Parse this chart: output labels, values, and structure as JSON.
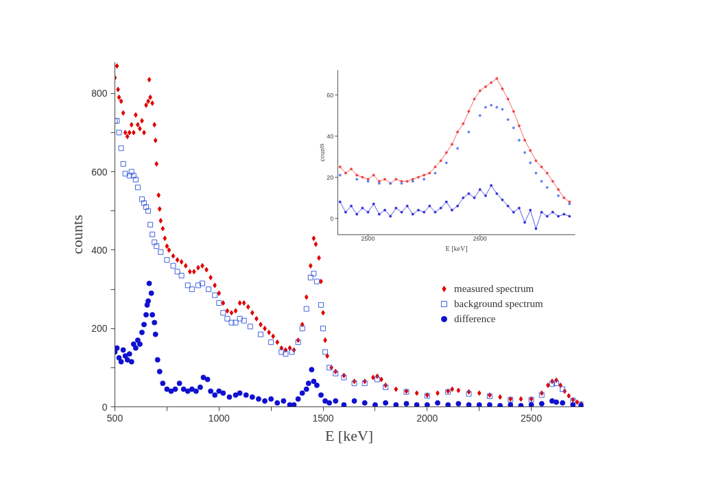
{
  "chart_data": [
    {
      "type": "scatter",
      "xlabel": "E [keV]",
      "ylabel": "counts",
      "xlim": [
        500,
        2750
      ],
      "xticks": [
        500,
        1000,
        1500,
        2000,
        2500,
        {
          "value": 750,
          "label": null
        },
        {
          "value": 1250,
          "label": null
        },
        {
          "value": 1750,
          "label": null
        },
        {
          "value": 2250,
          "label": null
        }
      ],
      "ylim": [
        0,
        880
      ],
      "yticks": [
        0,
        200,
        400,
        600,
        800,
        {
          "value": 100,
          "label": null
        },
        {
          "value": 300,
          "label": null
        },
        {
          "value": 500,
          "label": null
        },
        {
          "value": 700,
          "label": null
        }
      ],
      "grid": false,
      "legend": "right",
      "series": [
        {
          "name": "measured spectrum",
          "color": "#e00000",
          "marker": "diamond",
          "x": [
            500,
            510,
            515,
            520,
            530,
            540,
            550,
            560,
            570,
            580,
            590,
            600,
            610,
            620,
            630,
            640,
            650,
            660,
            665,
            670,
            680,
            690,
            695,
            700,
            710,
            715,
            720,
            730,
            740,
            750,
            760,
            780,
            800,
            820,
            840,
            860,
            880,
            900,
            920,
            940,
            960,
            980,
            1000,
            1020,
            1040,
            1060,
            1080,
            1100,
            1120,
            1140,
            1160,
            1180,
            1200,
            1220,
            1240,
            1260,
            1280,
            1300,
            1320,
            1340,
            1360,
            1380,
            1400,
            1420,
            1440,
            1455,
            1465,
            1480,
            1490,
            1500,
            1510,
            1520,
            1540,
            1560,
            1600,
            1650,
            1700,
            1740,
            1760,
            1780,
            1800,
            1850,
            1900,
            1950,
            2000,
            2050,
            2100,
            2120,
            2150,
            2200,
            2250,
            2300,
            2350,
            2400,
            2450,
            2500,
            2550,
            2580,
            2600,
            2620,
            2640,
            2660,
            2680,
            2700,
            2720,
            2740
          ],
          "values": [
            840,
            870,
            810,
            790,
            780,
            750,
            700,
            690,
            700,
            720,
            700,
            745,
            720,
            710,
            730,
            700,
            770,
            780,
            835,
            790,
            775,
            720,
            680,
            620,
            540,
            505,
            475,
            455,
            430,
            410,
            400,
            385,
            375,
            370,
            360,
            345,
            345,
            355,
            360,
            350,
            330,
            310,
            290,
            265,
            245,
            240,
            245,
            265,
            265,
            255,
            240,
            225,
            210,
            200,
            190,
            180,
            165,
            150,
            145,
            150,
            145,
            170,
            210,
            280,
            360,
            430,
            415,
            380,
            320,
            240,
            170,
            130,
            100,
            90,
            80,
            65,
            65,
            75,
            78,
            70,
            55,
            45,
            40,
            35,
            30,
            35,
            40,
            45,
            42,
            38,
            35,
            30,
            25,
            20,
            20,
            20,
            35,
            55,
            65,
            68,
            55,
            40,
            28,
            18,
            12,
            8
          ]
        },
        {
          "name": "background spectrum",
          "color": "#4060e0",
          "marker": "square_open",
          "x": [
            500,
            510,
            520,
            530,
            540,
            550,
            570,
            580,
            590,
            600,
            610,
            630,
            640,
            650,
            660,
            670,
            680,
            690,
            700,
            720,
            750,
            780,
            800,
            820,
            850,
            870,
            900,
            920,
            950,
            980,
            1000,
            1020,
            1040,
            1060,
            1080,
            1100,
            1120,
            1150,
            1200,
            1250,
            1300,
            1320,
            1350,
            1380,
            1400,
            1420,
            1440,
            1455,
            1470,
            1490,
            1500,
            1510,
            1530,
            1560,
            1600,
            1650,
            1700,
            1760,
            1800,
            1900,
            2000,
            2100,
            2200,
            2300,
            2400,
            2500,
            2550,
            2600,
            2620,
            2650,
            2700,
            2740
          ],
          "values": [
            730,
            730,
            700,
            660,
            620,
            595,
            590,
            600,
            590,
            580,
            560,
            530,
            520,
            510,
            500,
            465,
            440,
            420,
            410,
            395,
            375,
            360,
            345,
            335,
            310,
            300,
            310,
            315,
            300,
            285,
            265,
            240,
            225,
            215,
            215,
            225,
            220,
            205,
            185,
            165,
            140,
            135,
            140,
            165,
            200,
            250,
            330,
            340,
            320,
            260,
            200,
            140,
            100,
            85,
            75,
            60,
            60,
            70,
            50,
            38,
            28,
            38,
            33,
            27,
            18,
            18,
            30,
            58,
            60,
            45,
            16,
            6
          ]
        },
        {
          "name": "difference",
          "color": "#1010d0",
          "marker": "circle",
          "x": [
            500,
            510,
            520,
            530,
            540,
            550,
            560,
            570,
            580,
            590,
            600,
            610,
            620,
            630,
            640,
            650,
            655,
            660,
            665,
            675,
            680,
            690,
            695,
            705,
            715,
            730,
            750,
            770,
            790,
            810,
            830,
            850,
            870,
            890,
            910,
            925,
            945,
            960,
            980,
            1000,
            1020,
            1050,
            1080,
            1100,
            1130,
            1160,
            1190,
            1220,
            1250,
            1280,
            1310,
            1340,
            1360,
            1380,
            1400,
            1420,
            1430,
            1445,
            1455,
            1470,
            1490,
            1510,
            1530,
            1560,
            1600,
            1650,
            1700,
            1750,
            1800,
            1850,
            1900,
            1950,
            2000,
            2050,
            2100,
            2150,
            2200,
            2250,
            2300,
            2350,
            2400,
            2450,
            2500,
            2550,
            2600,
            2620,
            2650,
            2700,
            2740
          ],
          "values": [
            140,
            150,
            125,
            115,
            145,
            130,
            120,
            135,
            115,
            160,
            150,
            170,
            160,
            190,
            210,
            235,
            260,
            270,
            315,
            290,
            235,
            215,
            185,
            120,
            90,
            60,
            45,
            40,
            45,
            60,
            45,
            40,
            45,
            40,
            50,
            75,
            70,
            40,
            30,
            40,
            35,
            25,
            30,
            35,
            30,
            25,
            20,
            15,
            20,
            10,
            15,
            5,
            5,
            20,
            35,
            45,
            60,
            95,
            65,
            55,
            30,
            15,
            10,
            15,
            5,
            15,
            10,
            5,
            10,
            5,
            8,
            5,
            5,
            10,
            5,
            8,
            5,
            5,
            5,
            3,
            5,
            3,
            5,
            8,
            15,
            12,
            10,
            5,
            3
          ]
        }
      ]
    },
    {
      "type": "line",
      "xlabel": "E [keV]",
      "ylabel": "counts",
      "xlim": [
        2473,
        2685
      ],
      "xticks": [
        2500,
        2600
      ],
      "ylim": [
        -8,
        72
      ],
      "yticks": [
        0,
        20,
        40,
        60
      ],
      "series": [
        {
          "color": "#f04040",
          "type": "line",
          "marker": "circle",
          "x": [
            2475,
            2480,
            2485,
            2490,
            2495,
            2500,
            2505,
            2510,
            2515,
            2520,
            2525,
            2530,
            2535,
            2540,
            2545,
            2550,
            2555,
            2560,
            2565,
            2570,
            2575,
            2580,
            2585,
            2590,
            2595,
            2600,
            2605,
            2610,
            2615,
            2620,
            2625,
            2630,
            2635,
            2640,
            2645,
            2650,
            2655,
            2660,
            2665,
            2670,
            2675,
            2680
          ],
          "values": [
            25,
            22,
            24,
            21,
            20,
            19,
            21,
            18,
            19,
            17,
            19,
            18,
            18,
            19,
            20,
            21,
            22,
            25,
            28,
            32,
            36,
            42,
            46,
            52,
            58,
            62,
            64,
            66,
            68,
            63,
            58,
            52,
            45,
            38,
            33,
            28,
            25,
            22,
            18,
            14,
            10,
            8
          ]
        },
        {
          "color": "#6080f0",
          "type": "scatter",
          "marker": "circle",
          "x": [
            2475,
            2490,
            2500,
            2510,
            2520,
            2530,
            2540,
            2550,
            2560,
            2570,
            2580,
            2590,
            2600,
            2605,
            2610,
            2615,
            2620,
            2625,
            2630,
            2635,
            2640,
            2645,
            2650,
            2655,
            2660,
            2670,
            2680
          ],
          "values": [
            21,
            19,
            18,
            17,
            17,
            17,
            18,
            19,
            22,
            27,
            34,
            42,
            50,
            54,
            55,
            54,
            53,
            48,
            44,
            38,
            32,
            27,
            22,
            18,
            15,
            11,
            7
          ]
        },
        {
          "color": "#3030e0",
          "type": "line",
          "marker": "circle",
          "x": [
            2475,
            2480,
            2485,
            2490,
            2495,
            2500,
            2505,
            2510,
            2515,
            2520,
            2525,
            2530,
            2535,
            2540,
            2545,
            2550,
            2555,
            2560,
            2565,
            2570,
            2575,
            2580,
            2585,
            2590,
            2595,
            2600,
            2605,
            2610,
            2615,
            2620,
            2625,
            2630,
            2635,
            2640,
            2645,
            2650,
            2655,
            2660,
            2665,
            2670,
            2675,
            2680
          ],
          "values": [
            8,
            3,
            6,
            2,
            5,
            3,
            7,
            2,
            4,
            1,
            5,
            3,
            6,
            2,
            4,
            3,
            6,
            3,
            5,
            8,
            4,
            6,
            10,
            12,
            10,
            14,
            11,
            16,
            12,
            9,
            6,
            3,
            5,
            -2,
            4,
            -5,
            3,
            1,
            3,
            1,
            2,
            1
          ]
        }
      ]
    }
  ]
}
